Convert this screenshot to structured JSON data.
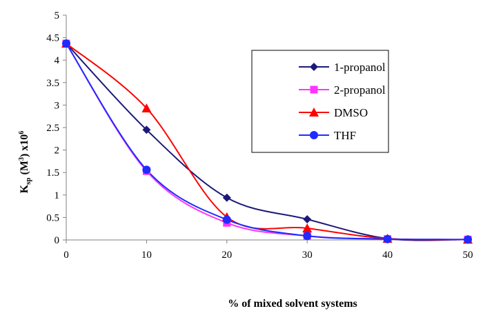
{
  "chart_data": {
    "type": "line",
    "title": "",
    "xlabel": "% of mixed solvent systems",
    "ylabel": {
      "main": "K",
      "sub": "sp",
      "unit_open": " (M",
      "unit_sup": "3",
      "unit_close": ") x10",
      "exp": "6"
    },
    "x": [
      0,
      10,
      20,
      30,
      40,
      50
    ],
    "xlim": [
      0,
      50
    ],
    "ylim": [
      0,
      5
    ],
    "x_ticks": [
      "0",
      "10",
      "20",
      "30",
      "40",
      "50"
    ],
    "y_ticks": [
      "0",
      "0.5",
      "1",
      "1.5",
      "2",
      "2.5",
      "3",
      "3.5",
      "4",
      "4.5",
      "5"
    ],
    "legend_position": "top-right",
    "grid": false,
    "smooth": true,
    "series": [
      {
        "name": "1-propanol",
        "color": "#1a1a7a",
        "marker": "diamond",
        "values": [
          4.37,
          2.45,
          0.94,
          0.46,
          0.03,
          0.01
        ]
      },
      {
        "name": "2-propanol",
        "color": "#ff33ff",
        "marker": "square",
        "values": [
          4.37,
          1.53,
          0.38,
          0.09,
          0.02,
          0.01
        ]
      },
      {
        "name": "DMSO",
        "color": "#ff0000",
        "marker": "triangle",
        "values": [
          4.37,
          2.93,
          0.51,
          0.26,
          0.03,
          0.01
        ]
      },
      {
        "name": "THF",
        "color": "#1f2bff",
        "marker": "circle",
        "values": [
          4.37,
          1.56,
          0.45,
          0.09,
          0.02,
          0.01
        ]
      }
    ]
  }
}
